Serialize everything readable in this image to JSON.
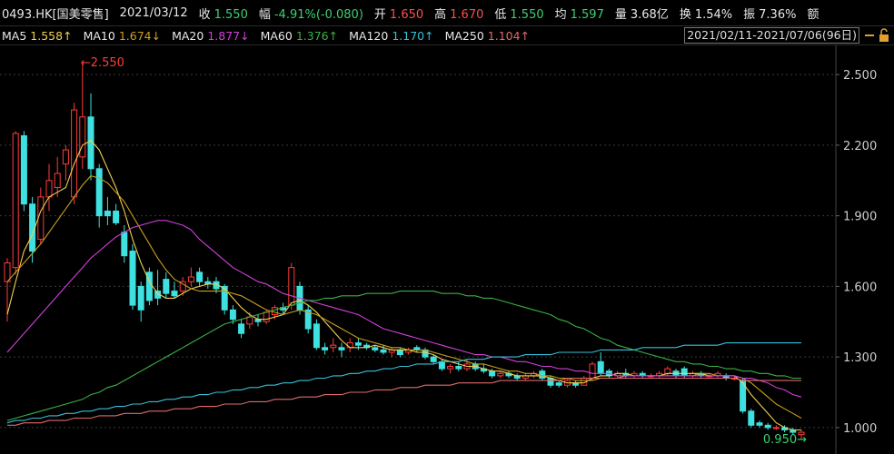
{
  "header": {
    "symbol": "0493.HK[国美零售]",
    "date": "2021/03/12",
    "quotes": [
      {
        "label": "收",
        "value": "1.550",
        "color": "#3cd070"
      },
      {
        "label": "幅",
        "value": "-4.91%(-0.080)",
        "color": "#3cd070"
      },
      {
        "label": "开",
        "value": "1.650",
        "color": "#ff4d4d"
      },
      {
        "label": "高",
        "value": "1.670",
        "color": "#ff4d4d"
      },
      {
        "label": "低",
        "value": "1.550",
        "color": "#3cd070"
      },
      {
        "label": "均",
        "value": "1.597",
        "color": "#3cd070"
      },
      {
        "label": "量",
        "value": "3.68亿",
        "color": "#e8e8e8"
      },
      {
        "label": "换",
        "value": "1.54%",
        "color": "#e8e8e8"
      },
      {
        "label": "振",
        "value": "7.36%",
        "color": "#e8e8e8"
      }
    ],
    "extra": "额",
    "range": "2021/02/11-2021/07/06(96日)"
  },
  "chart_data": {
    "type": "candlestick",
    "up_color": "#ff3b3b",
    "down_color": "#3fe0e0",
    "ylim": [
      0.907,
      2.624
    ],
    "yticks": [
      {
        "value": 1.0,
        "label": "1.000"
      },
      {
        "value": 1.3,
        "label": "1.300"
      },
      {
        "value": 1.6,
        "label": "1.600"
      },
      {
        "value": 1.9,
        "label": "1.900"
      },
      {
        "value": 2.2,
        "label": "2.200"
      },
      {
        "value": 2.5,
        "label": "2.500"
      }
    ],
    "grid": true,
    "max_label": "←2.550",
    "min_label": "0.950→",
    "open": [
      1.62,
      1.68,
      2.24,
      1.95,
      1.8,
      1.98,
      2.02,
      2.12,
      1.98,
      2.15,
      2.32,
      2.1,
      1.92,
      1.92,
      1.83,
      1.75,
      1.6,
      1.66,
      1.58,
      1.63,
      1.58,
      1.58,
      1.62,
      1.66,
      1.62,
      1.62,
      1.6,
      1.5,
      1.44,
      1.44,
      1.46,
      1.45,
      1.48,
      1.51,
      1.52,
      1.6,
      1.5,
      1.44,
      1.34,
      1.34,
      1.34,
      1.34,
      1.36,
      1.35,
      1.34,
      1.33,
      1.32,
      1.33,
      1.32,
      1.34,
      1.33,
      1.3,
      1.28,
      1.25,
      1.26,
      1.25,
      1.27,
      1.25,
      1.24,
      1.22,
      1.23,
      1.22,
      1.21,
      1.22,
      1.24,
      1.21,
      1.19,
      1.18,
      1.19,
      1.18,
      1.21,
      1.28,
      1.24,
      1.22,
      1.23,
      1.22,
      1.23,
      1.22,
      1.22,
      1.23,
      1.24,
      1.25,
      1.22,
      1.23,
      1.22,
      1.22,
      1.22,
      1.21,
      1.2,
      1.07,
      1.02,
      1.01,
      1.0,
      1.0,
      0.99,
      0.97
    ],
    "high": [
      1.72,
      2.26,
      2.26,
      1.98,
      2.02,
      2.12,
      2.15,
      2.2,
      2.38,
      2.55,
      2.42,
      2.12,
      1.98,
      1.95,
      1.86,
      1.78,
      1.62,
      1.68,
      1.67,
      1.66,
      1.62,
      1.64,
      1.68,
      1.68,
      1.64,
      1.64,
      1.61,
      1.52,
      1.46,
      1.49,
      1.48,
      1.5,
      1.52,
      1.53,
      1.7,
      1.62,
      1.52,
      1.46,
      1.36,
      1.38,
      1.36,
      1.38,
      1.38,
      1.36,
      1.35,
      1.35,
      1.34,
      1.34,
      1.34,
      1.35,
      1.34,
      1.31,
      1.29,
      1.27,
      1.28,
      1.29,
      1.28,
      1.27,
      1.25,
      1.24,
      1.24,
      1.23,
      1.23,
      1.24,
      1.25,
      1.22,
      1.2,
      1.21,
      1.2,
      1.22,
      1.28,
      1.32,
      1.25,
      1.24,
      1.25,
      1.24,
      1.24,
      1.23,
      1.24,
      1.26,
      1.25,
      1.26,
      1.24,
      1.24,
      1.23,
      1.24,
      1.23,
      1.22,
      1.21,
      1.08,
      1.03,
      1.02,
      1.01,
      1.01,
      1.0,
      0.99
    ],
    "low": [
      1.45,
      1.65,
      1.92,
      1.7,
      1.78,
      1.92,
      1.98,
      2.05,
      1.95,
      2.1,
      2.05,
      1.85,
      1.86,
      1.86,
      1.7,
      1.5,
      1.45,
      1.52,
      1.52,
      1.55,
      1.55,
      1.56,
      1.6,
      1.6,
      1.59,
      1.57,
      1.48,
      1.44,
      1.38,
      1.42,
      1.43,
      1.44,
      1.46,
      1.48,
      1.5,
      1.48,
      1.4,
      1.33,
      1.31,
      1.32,
      1.3,
      1.32,
      1.33,
      1.33,
      1.32,
      1.31,
      1.3,
      1.3,
      1.31,
      1.32,
      1.29,
      1.27,
      1.24,
      1.23,
      1.24,
      1.24,
      1.24,
      1.23,
      1.21,
      1.21,
      1.21,
      1.2,
      1.2,
      1.21,
      1.2,
      1.17,
      1.17,
      1.17,
      1.17,
      1.18,
      1.2,
      1.22,
      1.21,
      1.21,
      1.21,
      1.21,
      1.21,
      1.21,
      1.21,
      1.22,
      1.21,
      1.21,
      1.21,
      1.21,
      1.21,
      1.21,
      1.2,
      1.2,
      1.06,
      1.0,
      1.0,
      0.99,
      0.99,
      0.98,
      0.97,
      0.95
    ],
    "close": [
      1.7,
      2.25,
      1.95,
      1.75,
      1.98,
      2.05,
      2.08,
      2.18,
      2.35,
      2.32,
      2.1,
      1.9,
      1.9,
      1.87,
      1.73,
      1.52,
      1.5,
      1.54,
      1.55,
      1.57,
      1.56,
      1.62,
      1.64,
      1.62,
      1.61,
      1.59,
      1.5,
      1.46,
      1.4,
      1.47,
      1.45,
      1.49,
      1.51,
      1.5,
      1.68,
      1.5,
      1.42,
      1.34,
      1.33,
      1.35,
      1.33,
      1.36,
      1.35,
      1.34,
      1.33,
      1.32,
      1.33,
      1.31,
      1.33,
      1.33,
      1.3,
      1.28,
      1.25,
      1.26,
      1.25,
      1.27,
      1.25,
      1.24,
      1.22,
      1.23,
      1.22,
      1.21,
      1.22,
      1.23,
      1.21,
      1.18,
      1.18,
      1.2,
      1.18,
      1.21,
      1.27,
      1.23,
      1.22,
      1.23,
      1.22,
      1.23,
      1.22,
      1.22,
      1.23,
      1.25,
      1.22,
      1.22,
      1.23,
      1.22,
      1.22,
      1.23,
      1.21,
      1.21,
      1.07,
      1.01,
      1.01,
      1.0,
      1.0,
      0.99,
      0.98,
      0.98
    ],
    "series": [
      {
        "name": "MA5",
        "legend_value": "1.558↑",
        "color": "#f0d050",
        "values": [
          1.48,
          1.62,
          1.75,
          1.82,
          1.92,
          1.98,
          2.0,
          2.02,
          2.12,
          2.2,
          2.22,
          2.18,
          2.1,
          2.02,
          1.92,
          1.8,
          1.7,
          1.62,
          1.57,
          1.55,
          1.55,
          1.57,
          1.59,
          1.6,
          1.61,
          1.61,
          1.59,
          1.55,
          1.51,
          1.48,
          1.46,
          1.46,
          1.47,
          1.48,
          1.53,
          1.54,
          1.52,
          1.49,
          1.45,
          1.41,
          1.37,
          1.34,
          1.34,
          1.34,
          1.35,
          1.34,
          1.33,
          1.33,
          1.33,
          1.32,
          1.32,
          1.31,
          1.29,
          1.28,
          1.27,
          1.26,
          1.26,
          1.25,
          1.24,
          1.24,
          1.23,
          1.22,
          1.22,
          1.22,
          1.22,
          1.21,
          1.2,
          1.19,
          1.19,
          1.19,
          1.21,
          1.22,
          1.22,
          1.23,
          1.23,
          1.22,
          1.22,
          1.22,
          1.22,
          1.23,
          1.23,
          1.23,
          1.23,
          1.23,
          1.22,
          1.22,
          1.22,
          1.22,
          1.19,
          1.14,
          1.1,
          1.06,
          1.02,
          1.0,
          0.99,
          0.99
        ]
      },
      {
        "name": "MA10",
        "legend_value": "1.674↓",
        "color": "#c8a020",
        "values": [
          1.62,
          1.66,
          1.7,
          1.74,
          1.78,
          1.83,
          1.88,
          1.93,
          1.98,
          2.03,
          2.07,
          2.06,
          2.04,
          2.0,
          1.96,
          1.9,
          1.84,
          1.78,
          1.72,
          1.67,
          1.63,
          1.61,
          1.59,
          1.58,
          1.58,
          1.58,
          1.58,
          1.57,
          1.56,
          1.54,
          1.52,
          1.5,
          1.49,
          1.48,
          1.49,
          1.5,
          1.49,
          1.48,
          1.46,
          1.44,
          1.42,
          1.4,
          1.38,
          1.37,
          1.36,
          1.35,
          1.34,
          1.34,
          1.33,
          1.33,
          1.33,
          1.32,
          1.31,
          1.3,
          1.29,
          1.28,
          1.27,
          1.27,
          1.26,
          1.25,
          1.24,
          1.24,
          1.23,
          1.23,
          1.22,
          1.22,
          1.21,
          1.21,
          1.2,
          1.2,
          1.2,
          1.21,
          1.21,
          1.21,
          1.22,
          1.22,
          1.22,
          1.22,
          1.22,
          1.22,
          1.22,
          1.22,
          1.22,
          1.23,
          1.23,
          1.22,
          1.22,
          1.22,
          1.21,
          1.19,
          1.16,
          1.13,
          1.1,
          1.08,
          1.06,
          1.04
        ]
      },
      {
        "name": "MA20",
        "legend_value": "1.877↓",
        "color": "#d040d8",
        "values": [
          1.32,
          1.36,
          1.4,
          1.44,
          1.48,
          1.52,
          1.56,
          1.6,
          1.64,
          1.68,
          1.72,
          1.75,
          1.78,
          1.81,
          1.83,
          1.85,
          1.86,
          1.87,
          1.88,
          1.88,
          1.87,
          1.86,
          1.84,
          1.8,
          1.77,
          1.74,
          1.71,
          1.68,
          1.66,
          1.64,
          1.62,
          1.61,
          1.59,
          1.57,
          1.56,
          1.55,
          1.54,
          1.53,
          1.52,
          1.51,
          1.5,
          1.49,
          1.48,
          1.46,
          1.44,
          1.42,
          1.41,
          1.4,
          1.39,
          1.38,
          1.37,
          1.36,
          1.35,
          1.34,
          1.33,
          1.32,
          1.31,
          1.31,
          1.3,
          1.3,
          1.29,
          1.28,
          1.28,
          1.27,
          1.26,
          1.26,
          1.25,
          1.25,
          1.24,
          1.24,
          1.23,
          1.23,
          1.23,
          1.22,
          1.22,
          1.22,
          1.22,
          1.22,
          1.22,
          1.22,
          1.22,
          1.22,
          1.22,
          1.22,
          1.22,
          1.22,
          1.22,
          1.22,
          1.21,
          1.21,
          1.2,
          1.19,
          1.17,
          1.16,
          1.14,
          1.13
        ]
      },
      {
        "name": "MA60",
        "legend_value": "1.376↑",
        "color": "#3cb043",
        "values": [
          1.03,
          1.04,
          1.05,
          1.06,
          1.07,
          1.08,
          1.09,
          1.1,
          1.11,
          1.12,
          1.14,
          1.15,
          1.17,
          1.18,
          1.2,
          1.22,
          1.24,
          1.26,
          1.28,
          1.3,
          1.32,
          1.34,
          1.36,
          1.38,
          1.4,
          1.42,
          1.44,
          1.45,
          1.46,
          1.47,
          1.48,
          1.49,
          1.5,
          1.51,
          1.52,
          1.53,
          1.54,
          1.54,
          1.55,
          1.55,
          1.56,
          1.56,
          1.56,
          1.57,
          1.57,
          1.57,
          1.57,
          1.58,
          1.58,
          1.58,
          1.58,
          1.58,
          1.57,
          1.57,
          1.57,
          1.56,
          1.56,
          1.55,
          1.55,
          1.54,
          1.53,
          1.52,
          1.51,
          1.5,
          1.49,
          1.48,
          1.46,
          1.45,
          1.43,
          1.42,
          1.4,
          1.38,
          1.37,
          1.35,
          1.34,
          1.33,
          1.32,
          1.31,
          1.3,
          1.29,
          1.28,
          1.28,
          1.27,
          1.27,
          1.26,
          1.26,
          1.25,
          1.25,
          1.24,
          1.24,
          1.23,
          1.23,
          1.22,
          1.22,
          1.21,
          1.21
        ]
      },
      {
        "name": "MA120",
        "legend_value": "1.170↑",
        "color": "#38c0d8",
        "values": [
          1.02,
          1.03,
          1.03,
          1.04,
          1.04,
          1.05,
          1.05,
          1.06,
          1.06,
          1.07,
          1.07,
          1.08,
          1.08,
          1.09,
          1.09,
          1.1,
          1.1,
          1.11,
          1.11,
          1.12,
          1.12,
          1.13,
          1.13,
          1.14,
          1.14,
          1.15,
          1.15,
          1.16,
          1.16,
          1.17,
          1.17,
          1.18,
          1.18,
          1.19,
          1.19,
          1.2,
          1.2,
          1.21,
          1.21,
          1.22,
          1.22,
          1.23,
          1.23,
          1.24,
          1.24,
          1.25,
          1.25,
          1.26,
          1.26,
          1.27,
          1.27,
          1.27,
          1.28,
          1.28,
          1.28,
          1.29,
          1.29,
          1.29,
          1.3,
          1.3,
          1.3,
          1.3,
          1.31,
          1.31,
          1.31,
          1.31,
          1.32,
          1.32,
          1.32,
          1.32,
          1.32,
          1.33,
          1.33,
          1.33,
          1.33,
          1.33,
          1.34,
          1.34,
          1.34,
          1.34,
          1.34,
          1.35,
          1.35,
          1.35,
          1.35,
          1.35,
          1.36,
          1.36,
          1.36,
          1.36,
          1.36,
          1.36,
          1.36,
          1.36,
          1.36,
          1.36
        ]
      },
      {
        "name": "MA250",
        "legend_value": "1.104↑",
        "color": "#e06a6a",
        "values": [
          1.01,
          1.01,
          1.02,
          1.02,
          1.02,
          1.03,
          1.03,
          1.03,
          1.04,
          1.04,
          1.04,
          1.05,
          1.05,
          1.05,
          1.06,
          1.06,
          1.06,
          1.07,
          1.07,
          1.07,
          1.08,
          1.08,
          1.08,
          1.09,
          1.09,
          1.09,
          1.1,
          1.1,
          1.1,
          1.11,
          1.11,
          1.11,
          1.12,
          1.12,
          1.12,
          1.13,
          1.13,
          1.13,
          1.14,
          1.14,
          1.14,
          1.15,
          1.15,
          1.15,
          1.16,
          1.16,
          1.16,
          1.17,
          1.17,
          1.17,
          1.18,
          1.18,
          1.18,
          1.18,
          1.19,
          1.19,
          1.19,
          1.19,
          1.19,
          1.2,
          1.2,
          1.2,
          1.2,
          1.2,
          1.2,
          1.2,
          1.2,
          1.21,
          1.21,
          1.21,
          1.21,
          1.21,
          1.21,
          1.21,
          1.21,
          1.21,
          1.21,
          1.21,
          1.21,
          1.21,
          1.21,
          1.21,
          1.21,
          1.21,
          1.21,
          1.21,
          1.21,
          1.21,
          1.2,
          1.2,
          1.2,
          1.2,
          1.2,
          1.2,
          1.2,
          1.2
        ]
      }
    ]
  }
}
